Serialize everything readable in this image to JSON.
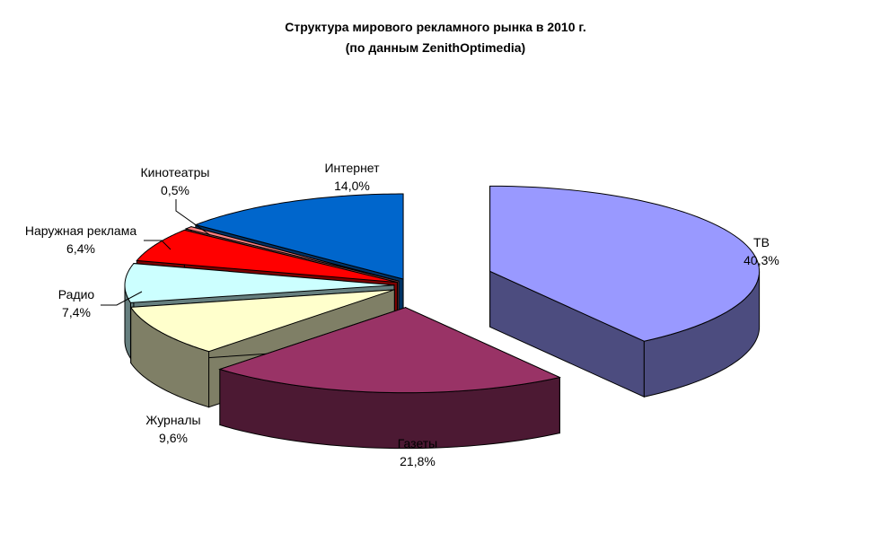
{
  "chart_data": {
    "type": "pie",
    "style": "3d-exploded",
    "title": "Структура мирового рекламного рынка в 2010 г.",
    "subtitle": "(по данным ZenithOptimedia)",
    "slices": [
      {
        "label": "ТВ",
        "value": 40.3,
        "value_label": "40,3%",
        "color": "#9999ff"
      },
      {
        "label": "Газеты",
        "value": 21.8,
        "value_label": "21,8%",
        "color": "#993366"
      },
      {
        "label": "Журналы",
        "value": 9.6,
        "value_label": "9,6%",
        "color": "#ffffcc"
      },
      {
        "label": "Радио",
        "value": 7.4,
        "value_label": "7,4%",
        "color": "#ccffff"
      },
      {
        "label": "Наружная реклама",
        "value": 6.4,
        "value_label": "6,4%",
        "color": "#ff0000"
      },
      {
        "label": "Кинотеатры",
        "value": 0.5,
        "value_label": "0,5%",
        "color": "#ff8080"
      },
      {
        "label": "Интернет",
        "value": 14.0,
        "value_label": "14,0%",
        "color": "#0066cc"
      }
    ]
  }
}
